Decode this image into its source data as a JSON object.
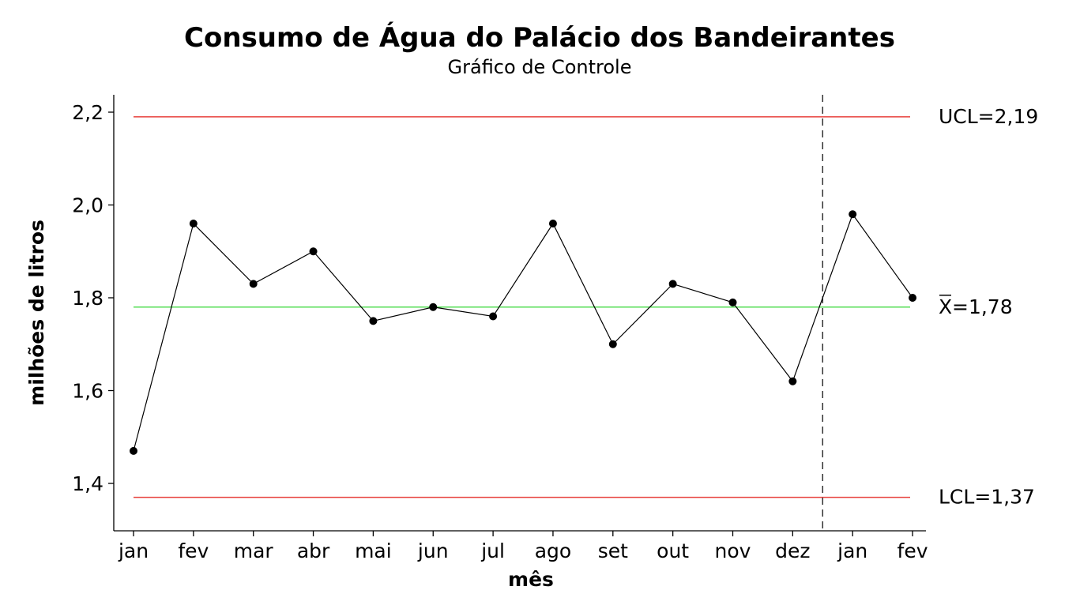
{
  "chart_data": {
    "type": "line",
    "title": "Consumo de Água do Palácio dos Bandeirantes",
    "subtitle": "Gráfico de Controle",
    "xlabel": "mês",
    "ylabel": "milhões de litros",
    "categories": [
      "jan",
      "fev",
      "mar",
      "abr",
      "mai",
      "jun",
      "jul",
      "ago",
      "set",
      "out",
      "nov",
      "dez",
      "jan",
      "fev"
    ],
    "values": [
      1.47,
      1.96,
      1.83,
      1.9,
      1.75,
      1.78,
      1.76,
      1.96,
      1.7,
      1.83,
      1.79,
      1.62,
      1.98,
      1.8
    ],
    "ylim": [
      1.3,
      2.24
    ],
    "yticks": [
      1.4,
      1.6,
      1.8,
      2.0,
      2.2
    ],
    "ytick_labels": [
      "1,4",
      "1,6",
      "1,8",
      "2,0",
      "2,2"
    ],
    "control_limits": {
      "ucl": {
        "value": 2.19,
        "label": "UCL=2,19",
        "color": "#e8413c"
      },
      "center": {
        "value": 1.78,
        "label_symbol": "X",
        "label_rest": "=1,78",
        "color": "#55dd55"
      },
      "lcl": {
        "value": 1.37,
        "label": "LCL=1,37",
        "color": "#e8413c"
      }
    },
    "stage_divider_after_index": 11,
    "series_color": "#000000",
    "grid": false
  }
}
